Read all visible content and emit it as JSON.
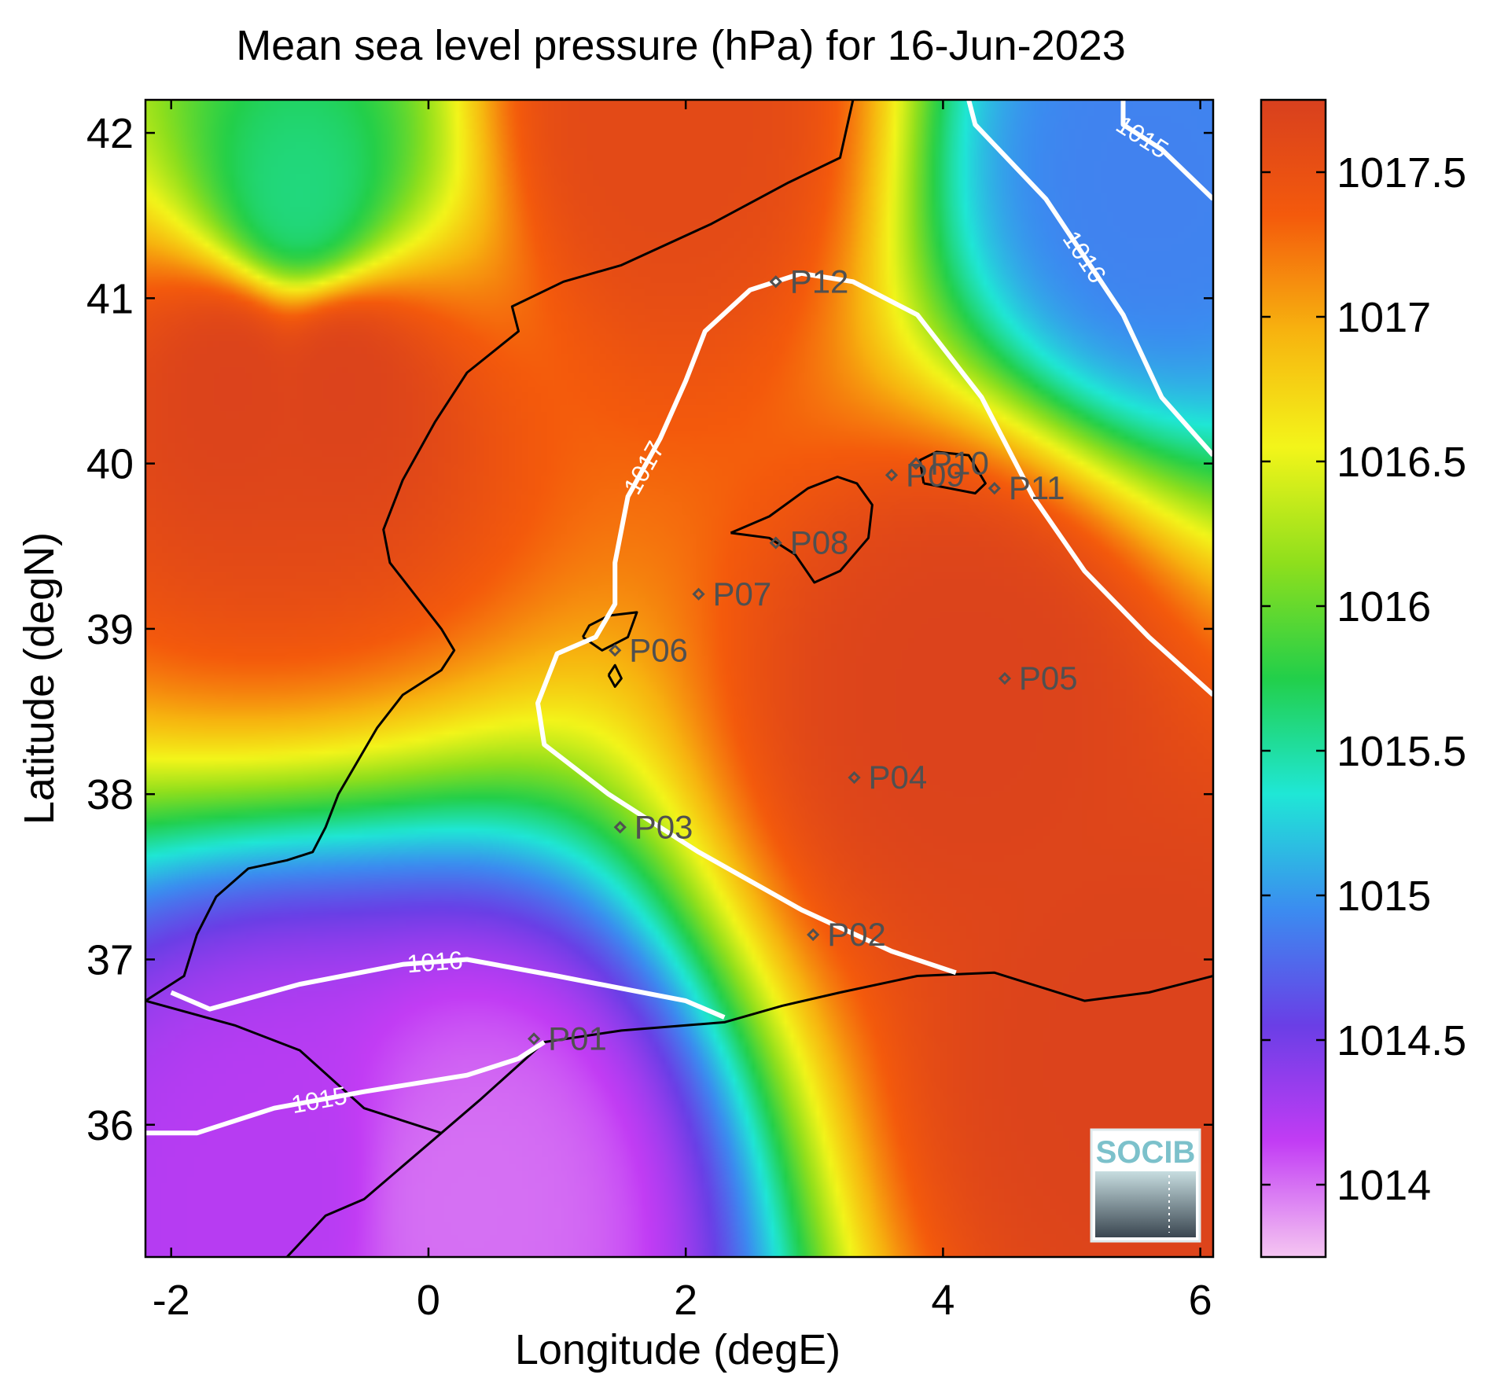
{
  "chart_data": {
    "type": "heatmap",
    "title": "Mean sea level pressure (hPa) for 16-Jun-2023",
    "xlabel": "Longitude (degE)",
    "ylabel": "Latitude (degN)",
    "xlim": [
      -2.2,
      6.1
    ],
    "ylim": [
      35.2,
      42.2
    ],
    "x_ticks": [
      -2,
      0,
      2,
      4,
      6
    ],
    "y_ticks": [
      36,
      37,
      38,
      39,
      40,
      41,
      42
    ],
    "x_tick_labels": [
      "-2",
      "0",
      "2",
      "4",
      "6"
    ],
    "y_tick_labels": [
      "36",
      "37",
      "38",
      "39",
      "40",
      "41",
      "42"
    ],
    "grid": false,
    "colorbar": {
      "range": [
        1013.75,
        1017.75
      ],
      "ticks": [
        1014,
        1014.5,
        1015,
        1015.5,
        1016,
        1016.5,
        1017,
        1017.5
      ],
      "tick_labels": [
        "1014",
        "1014.5",
        "1015",
        "1015.5",
        "1016",
        "1016.5",
        "1017",
        "1017.5"
      ],
      "colors": [
        "#f5c6f2",
        "#c23cf4",
        "#6a3ee6",
        "#3b8cf0",
        "#1fe7d6",
        "#22cf4a",
        "#8fdf1c",
        "#f3f51a",
        "#f7b30f",
        "#f45a0c",
        "#d8401e"
      ]
    },
    "pressure_field_centers": [
      {
        "lon": 4.2,
        "lat": 38.6,
        "pressure": 1017.7
      },
      {
        "lon": 5.5,
        "lat": 36.4,
        "pressure": 1017.7
      },
      {
        "lon": -1.5,
        "lat": 40.5,
        "pressure": 1017.7
      },
      {
        "lon": -0.7,
        "lat": 40.5,
        "pressure": 1017.7
      },
      {
        "lon": 0.3,
        "lat": 35.5,
        "pressure": 1014.0
      },
      {
        "lon": -1.2,
        "lat": 35.6,
        "pressure": 1014.2
      },
      {
        "lon": 5.6,
        "lat": 41.7,
        "pressure": 1014.9
      },
      {
        "lon": 1.8,
        "lat": 42.1,
        "pressure": 1017.6
      },
      {
        "lon": -1.0,
        "lat": 41.6,
        "pressure": 1015.6
      }
    ],
    "contours": [
      {
        "level": 1015,
        "label": "1015",
        "points": [
          [
            -2.2,
            35.95
          ],
          [
            -1.8,
            35.95
          ],
          [
            -1.2,
            36.1
          ],
          [
            -0.5,
            36.2
          ],
          [
            0.3,
            36.3
          ],
          [
            0.7,
            36.4
          ],
          [
            0.9,
            36.5
          ]
        ]
      },
      {
        "level": 1015,
        "label": "1015",
        "points": [
          [
            5.4,
            42.2
          ],
          [
            5.4,
            42.05
          ],
          [
            5.7,
            41.9
          ],
          [
            6.1,
            41.6
          ]
        ]
      },
      {
        "level": 1016,
        "label": "1016",
        "points": [
          [
            -2.0,
            36.8
          ],
          [
            -1.7,
            36.7
          ],
          [
            -1.0,
            36.85
          ],
          [
            -0.2,
            36.97
          ],
          [
            0.3,
            37.0
          ],
          [
            1.0,
            36.9
          ],
          [
            2.0,
            36.75
          ],
          [
            2.3,
            36.65
          ]
        ]
      },
      {
        "level": 1016,
        "label": "1016",
        "points": [
          [
            4.2,
            42.2
          ],
          [
            4.25,
            42.05
          ],
          [
            4.8,
            41.6
          ],
          [
            5.4,
            40.9
          ],
          [
            5.7,
            40.4
          ],
          [
            6.1,
            40.05
          ]
        ]
      },
      {
        "level": 1017,
        "label": "1017",
        "points": [
          [
            4.1,
            36.92
          ],
          [
            3.6,
            37.05
          ],
          [
            2.9,
            37.3
          ],
          [
            2.1,
            37.65
          ],
          [
            1.4,
            38.0
          ],
          [
            0.9,
            38.3
          ],
          [
            0.85,
            38.55
          ],
          [
            1.0,
            38.85
          ],
          [
            1.3,
            38.95
          ],
          [
            1.45,
            39.15
          ],
          [
            1.45,
            39.4
          ],
          [
            1.55,
            39.8
          ],
          [
            1.8,
            40.15
          ],
          [
            2.0,
            40.5
          ],
          [
            2.15,
            40.8
          ],
          [
            2.5,
            41.05
          ],
          [
            2.9,
            41.15
          ],
          [
            3.3,
            41.1
          ],
          [
            3.8,
            40.9
          ],
          [
            4.3,
            40.4
          ],
          [
            4.7,
            39.8
          ],
          [
            5.1,
            39.35
          ],
          [
            5.6,
            38.95
          ],
          [
            6.1,
            38.6
          ]
        ]
      }
    ],
    "markers": [
      {
        "label": "P01",
        "lon": 0.82,
        "lat": 36.52
      },
      {
        "label": "P02",
        "lon": 2.99,
        "lat": 37.15
      },
      {
        "label": "P03",
        "lon": 1.49,
        "lat": 37.8
      },
      {
        "label": "P04",
        "lon": 3.31,
        "lat": 38.1
      },
      {
        "label": "P05",
        "lon": 4.48,
        "lat": 38.7
      },
      {
        "label": "P06",
        "lon": 1.45,
        "lat": 38.87
      },
      {
        "label": "P07",
        "lon": 2.1,
        "lat": 39.21
      },
      {
        "label": "P08",
        "lon": 2.7,
        "lat": 39.52
      },
      {
        "label": "P09",
        "lon": 3.6,
        "lat": 39.93
      },
      {
        "label": "P10",
        "lon": 3.79,
        "lat": 40.0
      },
      {
        "label": "P11",
        "lon": 4.4,
        "lat": 39.85
      },
      {
        "label": "P12",
        "lon": 2.7,
        "lat": 41.1
      }
    ],
    "coastlines": [
      [
        [
          -2.2,
          36.75
        ],
        [
          -1.9,
          36.9
        ],
        [
          -1.8,
          37.15
        ],
        [
          -1.65,
          37.38
        ],
        [
          -1.4,
          37.55
        ],
        [
          -1.1,
          37.6
        ],
        [
          -0.9,
          37.65
        ],
        [
          -0.8,
          37.8
        ],
        [
          -0.7,
          38.0
        ],
        [
          -0.55,
          38.2
        ],
        [
          -0.4,
          38.4
        ],
        [
          -0.2,
          38.6
        ],
        [
          0.1,
          38.75
        ],
        [
          0.2,
          38.87
        ],
        [
          0.1,
          39.0
        ],
        [
          -0.3,
          39.4
        ],
        [
          -0.35,
          39.6
        ],
        [
          -0.2,
          39.9
        ],
        [
          0.05,
          40.25
        ],
        [
          0.3,
          40.55
        ],
        [
          0.7,
          40.8
        ],
        [
          0.65,
          40.95
        ],
        [
          1.05,
          41.1
        ],
        [
          1.5,
          41.2
        ],
        [
          2.2,
          41.45
        ],
        [
          2.8,
          41.7
        ],
        [
          3.2,
          41.85
        ],
        [
          3.3,
          42.2
        ]
      ],
      [
        [
          -2.2,
          36.75
        ],
        [
          -1.5,
          36.6
        ],
        [
          -1.0,
          36.45
        ],
        [
          -0.5,
          36.1
        ],
        [
          0.1,
          35.95
        ],
        [
          0.4,
          36.15
        ],
        [
          0.9,
          36.5
        ],
        [
          1.5,
          36.57
        ],
        [
          2.3,
          36.62
        ],
        [
          2.75,
          36.72
        ],
        [
          3.2,
          36.8
        ],
        [
          3.8,
          36.9
        ],
        [
          4.4,
          36.92
        ],
        [
          5.1,
          36.75
        ],
        [
          5.6,
          36.8
        ],
        [
          6.1,
          36.9
        ]
      ],
      [
        [
          -1.1,
          35.2
        ],
        [
          -0.8,
          35.45
        ],
        [
          -0.5,
          35.55
        ],
        [
          -0.2,
          35.75
        ],
        [
          0.1,
          35.95
        ]
      ],
      [
        [
          2.35,
          39.58
        ],
        [
          2.65,
          39.68
        ],
        [
          2.95,
          39.85
        ],
        [
          3.18,
          39.92
        ],
        [
          3.33,
          39.88
        ],
        [
          3.45,
          39.75
        ],
        [
          3.42,
          39.55
        ],
        [
          3.2,
          39.35
        ],
        [
          3.0,
          39.28
        ],
        [
          2.85,
          39.45
        ],
        [
          2.65,
          39.55
        ],
        [
          2.35,
          39.58
        ]
      ],
      [
        [
          3.85,
          39.88
        ],
        [
          4.05,
          39.85
        ],
        [
          4.25,
          39.82
        ],
        [
          4.33,
          39.88
        ],
        [
          4.2,
          40.05
        ],
        [
          3.95,
          40.07
        ],
        [
          3.82,
          40.02
        ],
        [
          3.85,
          39.88
        ]
      ],
      [
        [
          1.2,
          38.95
        ],
        [
          1.35,
          38.87
        ],
        [
          1.55,
          38.95
        ],
        [
          1.62,
          39.1
        ],
        [
          1.4,
          39.08
        ],
        [
          1.25,
          39.02
        ],
        [
          1.2,
          38.95
        ]
      ],
      [
        [
          1.4,
          38.72
        ],
        [
          1.45,
          38.65
        ],
        [
          1.5,
          38.7
        ],
        [
          1.45,
          38.78
        ],
        [
          1.4,
          38.72
        ]
      ]
    ],
    "logo_text": "SOCIB"
  }
}
